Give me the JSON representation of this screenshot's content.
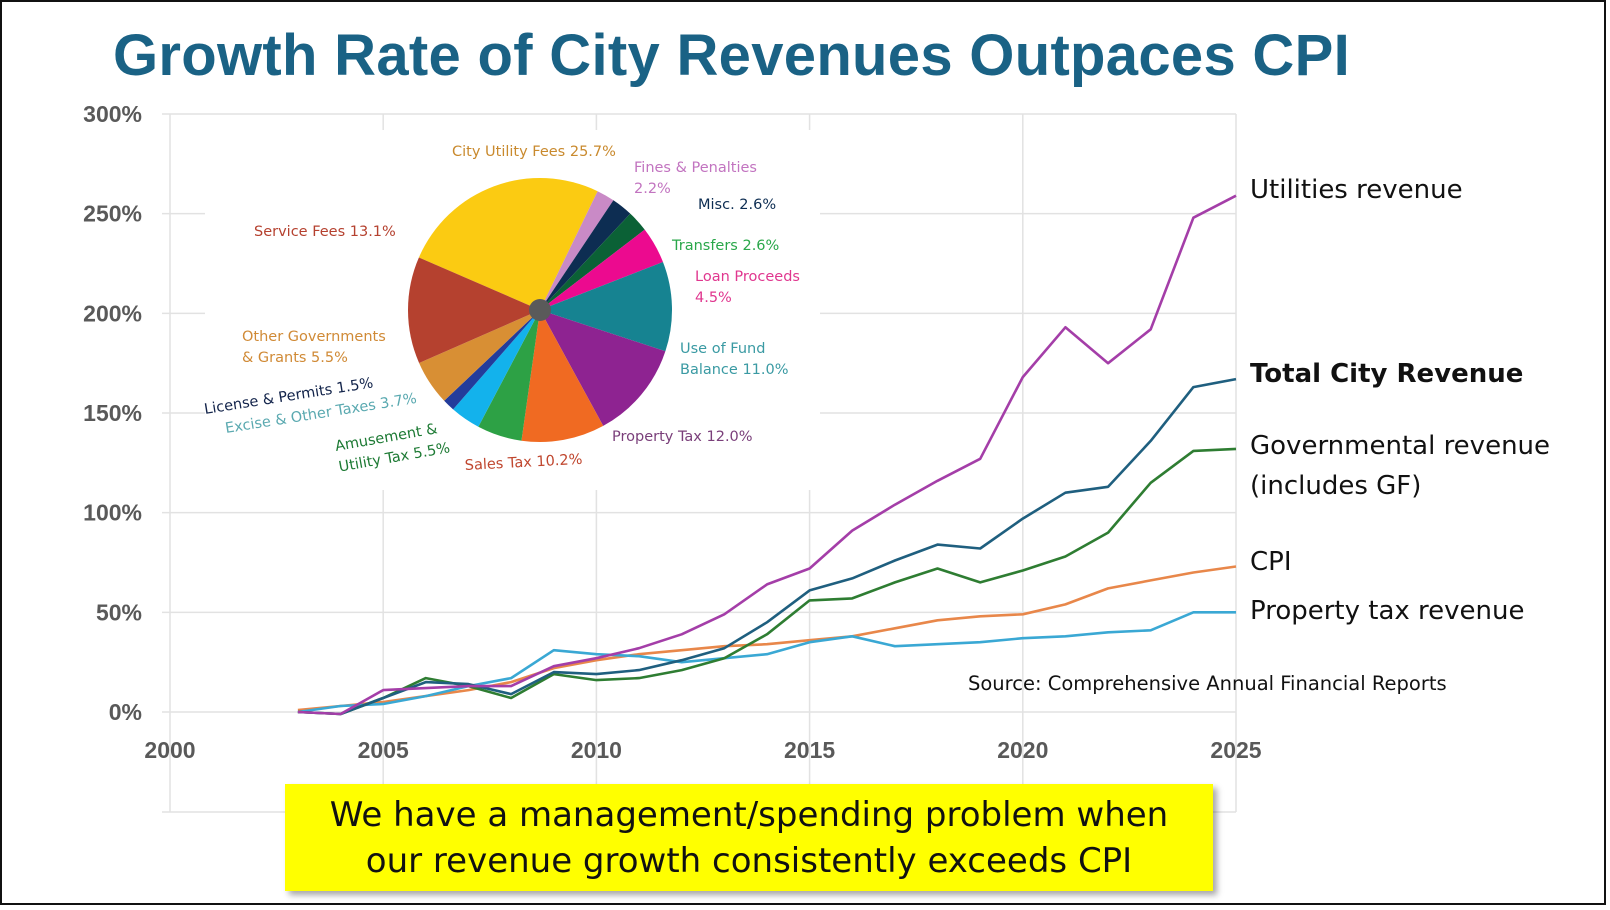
{
  "title": "Growth Rate of City Revenues Outpaces CPI",
  "source": "Source:  Comprehensive Annual Financial Reports",
  "callout": "We have a management/spending problem when our revenue growth consistently exceeds CPI",
  "chart_data": [
    {
      "type": "line",
      "title": "Growth Rate of City Revenues Outpaces CPI",
      "xlabel": "",
      "ylabel": "",
      "xlim": [
        2000,
        2025
      ],
      "ylim": [
        0,
        300
      ],
      "x_ticks": [
        "2000",
        "2005",
        "2010",
        "2015",
        "2020",
        "2025"
      ],
      "y_ticks": [
        "0%",
        "50%",
        "100%",
        "150%",
        "200%",
        "250%",
        "300%"
      ],
      "grid": true,
      "legend": "right (direct labels at line ends)",
      "x": [
        2003,
        2004,
        2005,
        2006,
        2007,
        2008,
        2009,
        2010,
        2011,
        2012,
        2013,
        2014,
        2015,
        2016,
        2017,
        2018,
        2019,
        2020,
        2021,
        2022,
        2023,
        2024,
        2025
      ],
      "series": [
        {
          "name": "Utilities revenue",
          "color": "#a43ea8",
          "bold": false,
          "values": [
            0,
            -1,
            11,
            12,
            13,
            13,
            23,
            27,
            32,
            39,
            49,
            64,
            72,
            91,
            104,
            116,
            127,
            168,
            193,
            175,
            192,
            248,
            259
          ]
        },
        {
          "name": "Total City Revenue",
          "color": "#1f5f7f",
          "bold": true,
          "values": [
            0,
            -1,
            7,
            15,
            14,
            9,
            20,
            19,
            21,
            26,
            32,
            45,
            61,
            67,
            76,
            84,
            82,
            97,
            110,
            113,
            136,
            163,
            167
          ]
        },
        {
          "name": "Governmental revenue (includes GF)",
          "label_lines": [
            "Governmental revenue",
            "(includes GF)"
          ],
          "color": "#2e7d32",
          "bold": false,
          "values": [
            0,
            -1,
            7,
            17,
            13,
            7,
            19,
            16,
            17,
            21,
            27,
            39,
            56,
            57,
            65,
            72,
            65,
            71,
            78,
            90,
            115,
            131,
            132
          ]
        },
        {
          "name": "CPI",
          "color": "#e8874a",
          "bold": false,
          "values": [
            1,
            3,
            5,
            8,
            11,
            15,
            22,
            26,
            29,
            31,
            33,
            34,
            36,
            38,
            42,
            46,
            48,
            49,
            54,
            62,
            66,
            70,
            73
          ]
        },
        {
          "name": "Property tax revenue",
          "color": "#3aa8d4",
          "bold": false,
          "values": [
            0,
            3,
            4,
            8,
            13,
            17,
            31,
            29,
            28,
            25,
            27,
            29,
            35,
            38,
            33,
            34,
            35,
            37,
            38,
            40,
            41,
            50,
            50
          ]
        }
      ]
    },
    {
      "type": "pie",
      "title": "",
      "slices": [
        {
          "label": "City Utility Fees 25.7%",
          "lines": [
            "City Utility Fees 25.7%"
          ],
          "value": 25.7,
          "color": "#fbcb12",
          "label_color": "#c98a2e"
        },
        {
          "label": "Fines & Penalties 2.2%",
          "lines": [
            "Fines & Penalties",
            "2.2%"
          ],
          "value": 2.2,
          "color": "#c98ac6",
          "label_color": "#c274c0"
        },
        {
          "label": "Misc. 2.6%",
          "lines": [
            "Misc. 2.6%"
          ],
          "value": 2.6,
          "color": "#0d2d52",
          "label_color": "#0d2d52"
        },
        {
          "label": "Transfers 2.6%",
          "lines": [
            "Transfers 2.6%"
          ],
          "value": 2.6,
          "color": "#0b6136",
          "label_color": "#2aa74a"
        },
        {
          "label": "Loan Proceeds 4.5%",
          "lines": [
            "Loan Proceeds",
            "4.5%"
          ],
          "value": 4.5,
          "color": "#ec0a8f",
          "label_color": "#e0378f"
        },
        {
          "label": "Use of Fund Balance 11.0%",
          "lines": [
            "Use of Fund",
            "Balance 11.0%"
          ],
          "value": 11.0,
          "color": "#168391",
          "label_color": "#3a9aa3"
        },
        {
          "label": "Property Tax 12.0%",
          "lines": [
            "Property Tax 12.0%"
          ],
          "value": 12.0,
          "color": "#8e2391",
          "label_color": "#7a3f7a"
        },
        {
          "label": "Sales Tax 10.2%",
          "lines": [
            "Sales Tax 10.2%"
          ],
          "value": 10.2,
          "color": "#f06a22",
          "label_color": "#c0472f"
        },
        {
          "label": "Amusement & Utility Tax 5.5%",
          "lines": [
            "Amusement &",
            "Utility Tax 5.5%"
          ],
          "value": 5.5,
          "color": "#2da145",
          "label_color": "#1d7a34"
        },
        {
          "label": "Excise & Other Taxes 3.7%",
          "lines": [
            "Excise & Other Taxes 3.7%"
          ],
          "value": 3.7,
          "color": "#13b2ec",
          "label_color": "#5aa9b0"
        },
        {
          "label": "License & Permits 1.5%",
          "lines": [
            "License & Permits 1.5%"
          ],
          "value": 1.5,
          "color": "#233c9b",
          "label_color": "#12234a"
        },
        {
          "label": "Other Governments & Grants 5.5%",
          "lines": [
            "Other Governments",
            "& Grants 5.5%"
          ],
          "value": 5.5,
          "color": "#d88f34",
          "label_color": "#d08a36"
        },
        {
          "label": "Service Fees 13.1%",
          "lines": [
            "Service Fees 13.1%"
          ],
          "value": 13.1,
          "color": "#b5412f",
          "label_color": "#b5412f"
        }
      ]
    }
  ]
}
